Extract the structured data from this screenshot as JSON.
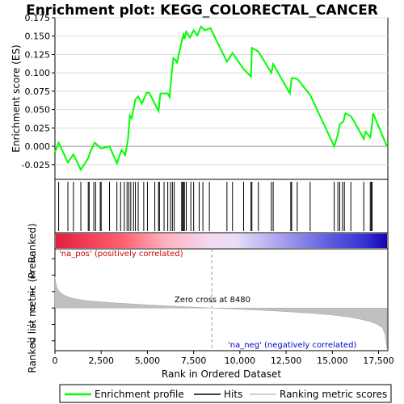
{
  "chart_data": {
    "type": "line",
    "title": "Enrichment plot: KEGG_COLORECTAL_CANCER",
    "top_panel": {
      "ylabel": "Enrichment score (ES)",
      "ylim": [
        -0.045,
        0.175
      ],
      "yticks": [
        -0.025,
        0.0,
        0.025,
        0.05,
        0.075,
        0.1,
        0.125,
        0.15,
        0.175
      ],
      "ytick_labels": [
        "-0.025",
        "0.000",
        "0.025",
        "0.050",
        "0.075",
        "0.100",
        "0.125",
        "0.150",
        "0.175"
      ],
      "series": [
        {
          "name": "Enrichment profile",
          "color": "#00ff00",
          "x": [
            0,
            200,
            700,
            1000,
            1400,
            1800,
            1900,
            2150,
            2500,
            2950,
            3350,
            3600,
            3800,
            3950,
            4050,
            4150,
            4350,
            4500,
            4700,
            4950,
            5100,
            5600,
            5700,
            5900,
            6100,
            6200,
            6300,
            6400,
            6500,
            6600,
            6900,
            6950,
            7000,
            7100,
            7300,
            7500,
            7700,
            7900,
            8100,
            8400,
            9300,
            9600,
            10200,
            10600,
            10650,
            11000,
            11700,
            11800,
            12700,
            12800,
            13100,
            13800,
            15100,
            15300,
            15400,
            15600,
            15700,
            16000,
            16200,
            16700,
            16800,
            17050,
            17150,
            17200,
            17950
          ],
          "y": [
            -0.008,
            0.005,
            -0.022,
            -0.011,
            -0.032,
            -0.016,
            -0.008,
            0.005,
            -0.003,
            0.0,
            -0.023,
            -0.005,
            -0.012,
            0.01,
            0.042,
            0.038,
            0.064,
            0.068,
            0.058,
            0.073,
            0.073,
            0.048,
            0.072,
            0.072,
            0.072,
            0.067,
            0.096,
            0.12,
            0.118,
            0.114,
            0.148,
            0.152,
            0.146,
            0.156,
            0.148,
            0.158,
            0.151,
            0.163,
            0.158,
            0.161,
            0.115,
            0.127,
            0.105,
            0.095,
            0.134,
            0.129,
            0.1,
            0.112,
            0.072,
            0.093,
            0.092,
            0.07,
            0.0,
            0.016,
            0.03,
            0.034,
            0.045,
            0.041,
            0.033,
            0.01,
            0.02,
            0.012,
            0.03,
            0.045,
            0.0
          ]
        }
      ]
    },
    "hits": [
      200,
      700,
      1000,
      1400,
      1800,
      1850,
      2100,
      2200,
      2450,
      2500,
      2950,
      3350,
      3550,
      3750,
      3900,
      4000,
      4100,
      4250,
      4350,
      4500,
      4800,
      5000,
      5400,
      5600,
      5650,
      5900,
      6100,
      6250,
      6350,
      6450,
      6850,
      6900,
      6950,
      7000,
      7100,
      7350,
      7500,
      7800,
      8000,
      8350,
      9300,
      9600,
      10200,
      10600,
      10650,
      11000,
      11700,
      11800,
      12750,
      12800,
      13100,
      13800,
      15100,
      15300,
      15400,
      15550,
      15650,
      16000,
      16700,
      17050,
      17100,
      17150
    ],
    "bottom_panel": {
      "ylabel": "Ranked list metric (PreRanked)",
      "ylim": [
        -2.6,
        3.6
      ],
      "yticks": [
        -2,
        -1,
        0,
        1,
        2,
        3
      ],
      "ytick_labels": [
        "-2",
        "-1",
        "0",
        "1",
        "2",
        "3"
      ],
      "series": [
        {
          "name": "Ranking metric scores",
          "color": "#c0c0c0",
          "x": [
            0,
            30,
            100,
            200,
            400,
            700,
            1000,
            1500,
            2000,
            3000,
            4000,
            5000,
            6000,
            7000,
            8000,
            8480,
            9000,
            10000,
            11000,
            12000,
            13000,
            14000,
            15000,
            15500,
            16000,
            16500,
            17000,
            17400,
            17700,
            17850,
            17950
          ],
          "y": [
            1.9,
            1.6,
            1.3,
            1.05,
            0.85,
            0.68,
            0.58,
            0.48,
            0.42,
            0.33,
            0.26,
            0.19,
            0.13,
            0.08,
            0.03,
            0.0,
            -0.03,
            -0.08,
            -0.13,
            -0.19,
            -0.26,
            -0.33,
            -0.43,
            -0.5,
            -0.58,
            -0.68,
            -0.82,
            -0.98,
            -1.2,
            -1.6,
            -2.45
          ]
        }
      ],
      "zero_cross_label": "Zero cross at 8480",
      "zero_cross": 8480,
      "pos_label": "'na_pos' (positively correlated)",
      "neg_label": "'na_neg' (negatively correlated)"
    },
    "xlabel": "Rank in Ordered Dataset",
    "xlim": [
      0,
      18000
    ],
    "xticks": [
      0,
      2500,
      5000,
      7500,
      10000,
      12500,
      15000,
      17500
    ],
    "xtick_labels": [
      "0",
      "2,500",
      "5,000",
      "7,500",
      "10,000",
      "12,500",
      "15,000",
      "17,500"
    ],
    "legend": [
      {
        "label": "Enrichment profile",
        "color": "#00ff00"
      },
      {
        "label": "Hits",
        "color": "#000000"
      },
      {
        "label": "Ranking metric scores",
        "color": "#c0c0c0"
      }
    ],
    "colors": {
      "pos_label": "#cc0000",
      "neg_label": "#0000cc",
      "profile": "#00ff00",
      "ranking": "#c0c0c0"
    }
  }
}
